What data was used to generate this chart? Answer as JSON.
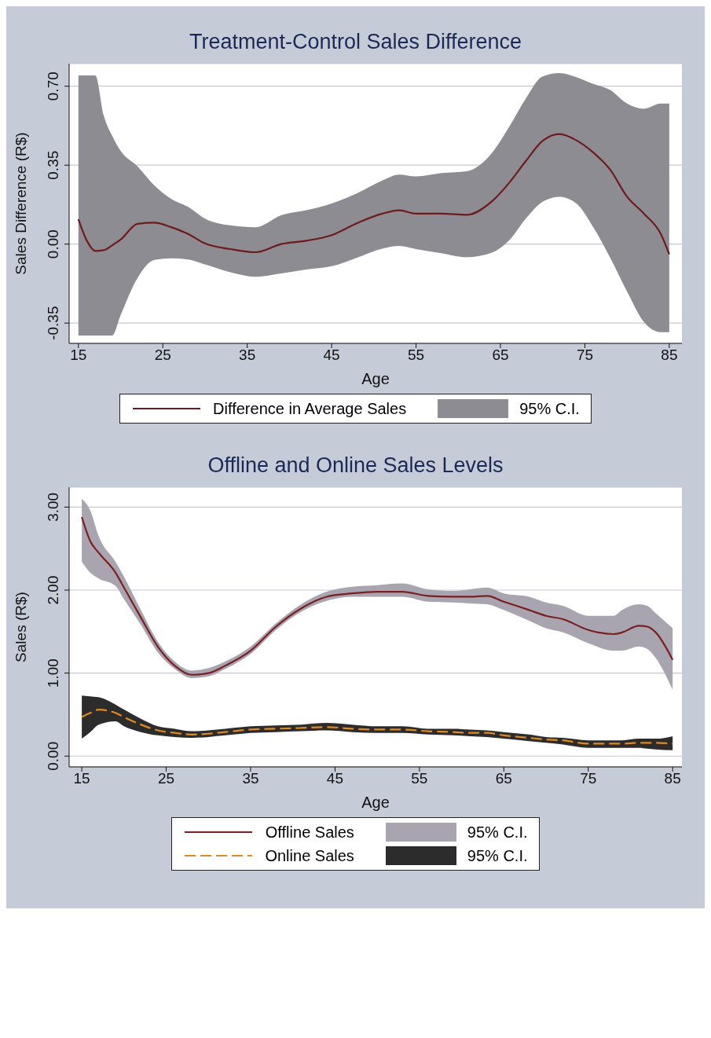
{
  "chart_data": [
    {
      "type": "line",
      "title": "Treatment-Control Sales Difference",
      "xlabel": "Age",
      "ylabel": "Sales Difference (R$)",
      "xlim": [
        13.9,
        86.5
      ],
      "xticks": [
        15,
        25,
        35,
        45,
        55,
        65,
        75,
        85
      ],
      "ylim": [
        -0.44,
        0.8
      ],
      "yticks": [
        {
          "value": -0.35,
          "label": "-0.35"
        },
        {
          "value": 0,
          "label": "0.00"
        },
        {
          "value": 0.35,
          "label": "0.35"
        },
        {
          "value": 0.7,
          "label": "0.70"
        }
      ],
      "grid": "y",
      "legend": "bottom",
      "series": [
        {
          "type": "line",
          "name": "Difference in Average Sales",
          "color": "#6e1b1f",
          "line_style": "solid",
          "x": [
            15,
            16,
            17,
            18,
            19,
            20,
            22,
            24,
            26,
            28,
            30,
            33,
            36,
            39,
            42,
            45,
            48,
            51,
            53,
            55,
            58,
            61,
            64,
            66,
            68,
            70,
            72,
            74,
            76,
            78,
            80,
            82,
            84,
            85
          ],
          "values": [
            0.11,
            0.015,
            -0.03,
            -0.027,
            -0.005,
            0.02,
            0.09,
            0.095,
            0.075,
            0.045,
            0.003,
            -0.022,
            -0.036,
            0.0,
            0.015,
            0.04,
            0.093,
            0.135,
            0.15,
            0.135,
            0.135,
            0.13,
            0.19,
            0.27,
            0.368,
            0.458,
            0.488,
            0.46,
            0.406,
            0.33,
            0.21,
            0.135,
            0.045,
            -0.045
          ],
          "lower": [
            -0.405,
            -0.405,
            -0.405,
            -0.405,
            -0.405,
            -0.315,
            -0.15,
            -0.07,
            -0.063,
            -0.068,
            -0.09,
            -0.125,
            -0.145,
            -0.13,
            -0.113,
            -0.098,
            -0.06,
            -0.02,
            -0.008,
            -0.022,
            -0.04,
            -0.058,
            -0.038,
            0.015,
            0.113,
            0.188,
            0.21,
            0.18,
            0.075,
            -0.06,
            -0.21,
            -0.345,
            -0.39,
            -0.39
          ],
          "upper": [
            0.748,
            0.748,
            0.748,
            0.57,
            0.48,
            0.413,
            0.345,
            0.26,
            0.2,
            0.165,
            0.113,
            0.083,
            0.075,
            0.128,
            0.15,
            0.18,
            0.225,
            0.282,
            0.308,
            0.3,
            0.315,
            0.323,
            0.405,
            0.518,
            0.645,
            0.743,
            0.758,
            0.74,
            0.71,
            0.683,
            0.623,
            0.6,
            0.623,
            0.623
          ]
        },
        {
          "type": "area",
          "name": "95% C.I.",
          "color": "#8d8c92"
        }
      ]
    },
    {
      "type": "line",
      "title": "Offline and Online Sales Levels",
      "xlabel": "Age",
      "ylabel": "Sales (R$)",
      "xlim": [
        13.5,
        86.1
      ],
      "xticks": [
        15,
        25,
        35,
        45,
        55,
        65,
        75,
        85
      ],
      "ylim": [
        -0.13,
        3.24
      ],
      "yticks": [
        {
          "value": 0,
          "label": "0.00"
        },
        {
          "value": 1,
          "label": "1.00"
        },
        {
          "value": 2,
          "label": "2.00"
        },
        {
          "value": 3,
          "label": "3.00"
        }
      ],
      "grid": "y",
      "legend": "bottom",
      "series": [
        {
          "type": "line",
          "name": "Offline Sales",
          "color": "#7a1f22",
          "line_style": "solid",
          "x": [
            15,
            16,
            17,
            19,
            20,
            22,
            24,
            26,
            28,
            30,
            32,
            35,
            38,
            41,
            44,
            47,
            50,
            53,
            56,
            59,
            61,
            63,
            65,
            68,
            70,
            72,
            75,
            78,
            79,
            81,
            82,
            83,
            85
          ],
          "values": [
            2.88,
            2.59,
            2.45,
            2.21,
            2.03,
            1.67,
            1.32,
            1.09,
            0.98,
            1.0,
            1.09,
            1.27,
            1.56,
            1.78,
            1.92,
            1.96,
            1.98,
            1.98,
            1.93,
            1.92,
            1.92,
            1.93,
            1.86,
            1.76,
            1.69,
            1.65,
            1.52,
            1.47,
            1.49,
            1.57,
            1.56,
            1.49,
            1.16
          ],
          "lower": [
            2.34,
            2.21,
            2.14,
            2.05,
            1.89,
            1.58,
            1.25,
            1.05,
            0.94,
            0.96,
            1.05,
            1.23,
            1.52,
            1.74,
            1.87,
            1.92,
            1.92,
            1.92,
            1.86,
            1.85,
            1.84,
            1.83,
            1.76,
            1.63,
            1.54,
            1.49,
            1.36,
            1.27,
            1.27,
            1.32,
            1.29,
            1.18,
            0.8
          ],
          "upper": [
            3.1,
            2.96,
            2.65,
            2.34,
            2.16,
            1.76,
            1.38,
            1.14,
            1.03,
            1.06,
            1.14,
            1.32,
            1.6,
            1.83,
            1.98,
            2.04,
            2.06,
            2.08,
            2.01,
            1.99,
            2.01,
            2.03,
            1.96,
            1.92,
            1.85,
            1.81,
            1.69,
            1.69,
            1.76,
            1.83,
            1.81,
            1.72,
            1.54
          ]
        },
        {
          "type": "area",
          "name": "95% C.I.",
          "color": "#a9a5b0"
        },
        {
          "type": "line",
          "name": "Online Sales",
          "color": "#e08a1e",
          "line_style": "dashed",
          "x": [
            15,
            16,
            17,
            19,
            20,
            22,
            24,
            26,
            28,
            30,
            32,
            35,
            38,
            41,
            44,
            47,
            50,
            53,
            56,
            59,
            61,
            63,
            65,
            68,
            70,
            72,
            75,
            78,
            79,
            81,
            82,
            83,
            85
          ],
          "values": [
            0.47,
            0.52,
            0.56,
            0.52,
            0.47,
            0.38,
            0.31,
            0.28,
            0.26,
            0.27,
            0.29,
            0.32,
            0.33,
            0.34,
            0.35,
            0.33,
            0.32,
            0.32,
            0.3,
            0.29,
            0.28,
            0.28,
            0.25,
            0.22,
            0.2,
            0.19,
            0.15,
            0.15,
            0.15,
            0.16,
            0.16,
            0.16,
            0.15
          ],
          "lower": [
            0.21,
            0.29,
            0.38,
            0.42,
            0.36,
            0.29,
            0.25,
            0.23,
            0.22,
            0.23,
            0.25,
            0.28,
            0.29,
            0.3,
            0.31,
            0.29,
            0.28,
            0.28,
            0.26,
            0.25,
            0.24,
            0.23,
            0.21,
            0.18,
            0.16,
            0.14,
            0.1,
            0.1,
            0.1,
            0.1,
            0.09,
            0.08,
            0.07
          ],
          "upper": [
            0.73,
            0.72,
            0.71,
            0.62,
            0.56,
            0.45,
            0.36,
            0.33,
            0.3,
            0.31,
            0.33,
            0.36,
            0.37,
            0.38,
            0.4,
            0.38,
            0.36,
            0.36,
            0.33,
            0.33,
            0.32,
            0.31,
            0.29,
            0.26,
            0.23,
            0.22,
            0.19,
            0.19,
            0.19,
            0.21,
            0.21,
            0.21,
            0.24
          ]
        },
        {
          "type": "area",
          "name": "95% C.I.",
          "color": "#2c2c2c"
        }
      ]
    }
  ]
}
